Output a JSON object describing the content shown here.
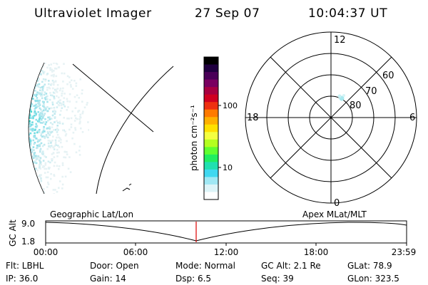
{
  "header": {
    "instrument": "Ultraviolet Imager",
    "date": "27 Sep 07",
    "time": "10:04:37 UT"
  },
  "colorbar": {
    "unit": "photon cm⁻²s⁻¹",
    "ticks": [
      "100",
      "10"
    ],
    "colors": [
      "#000000",
      "#200040",
      "#4a0058",
      "#7a0060",
      "#a80040",
      "#d00020",
      "#ee3010",
      "#ff7a00",
      "#ffb000",
      "#ffe000",
      "#f4ff40",
      "#b4ff20",
      "#60ff30",
      "#20ee60",
      "#20e0b0",
      "#40d8f0",
      "#a0e8f4",
      "#ddf4f8",
      "#ffffff"
    ]
  },
  "polar_plot": {
    "mlt_labels": {
      "top": "12",
      "left": "18",
      "right": "6",
      "bottom": "0"
    },
    "lat_labels": [
      "60",
      "70",
      "80"
    ]
  },
  "timeline": {
    "y_axis_title": "GC Alt",
    "y_ticks": [
      "9.0",
      "1.8"
    ],
    "left_label": "Geographic Lat/Lon",
    "right_label": "Apex MLat/MLT",
    "x_ticks": [
      "00:00",
      "06:00",
      "12:00",
      "18:00",
      "23:59"
    ],
    "marker_color": "#dd0000"
  },
  "footer": {
    "flt": "Flt: LBHL",
    "door": "Door: Open",
    "mode": "Mode: Normal",
    "gc_alt": "GC Alt: 2.1 Re",
    "glat": "GLat:  78.9",
    "ip": "IP: 36.0",
    "gain": "Gain: 14",
    "dsp": "Dsp:      6.5",
    "seq": "Seq: 39",
    "glon": "GLon: 323.5"
  }
}
